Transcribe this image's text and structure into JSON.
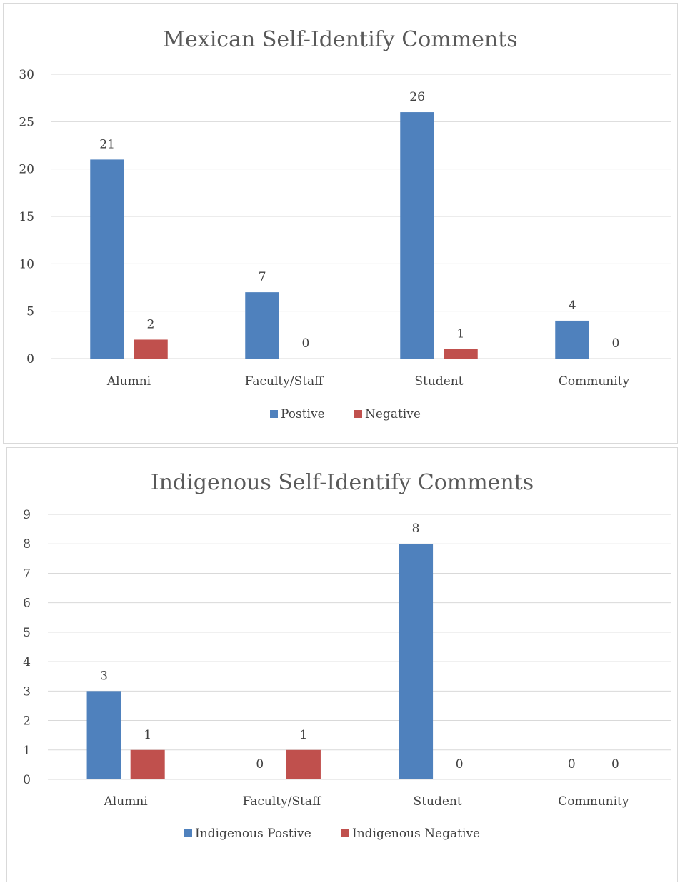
{
  "chart_data": [
    {
      "type": "bar",
      "title": "Mexican Self-Identify Comments",
      "categories": [
        "Alumni",
        "Faculty/Staff",
        "Student",
        "Community"
      ],
      "series": [
        {
          "name": "Postive",
          "values": [
            21,
            7,
            26,
            4
          ],
          "color": "#4f81bd"
        },
        {
          "name": "Negative",
          "values": [
            2,
            0,
            1,
            0
          ],
          "color": "#c0504d"
        }
      ],
      "ylim": [
        0,
        30
      ],
      "yticks": [
        0,
        5,
        10,
        15,
        20,
        25,
        30
      ],
      "grid": true,
      "legend": "bottom",
      "data_labels": true
    },
    {
      "type": "bar",
      "title": "Indigenous Self-Identify Comments",
      "categories": [
        "Alumni",
        "Faculty/Staff",
        "Student",
        "Community"
      ],
      "series": [
        {
          "name": "Indigenous Postive",
          "values": [
            3,
            0,
            8,
            0
          ],
          "color": "#4f81bd"
        },
        {
          "name": "Indigenous Negative",
          "values": [
            1,
            1,
            0,
            0
          ],
          "color": "#c0504d"
        }
      ],
      "ylim": [
        0,
        9
      ],
      "yticks": [
        0,
        1,
        2,
        3,
        4,
        5,
        6,
        7,
        8,
        9
      ],
      "grid": true,
      "legend": "bottom",
      "data_labels": true
    }
  ]
}
